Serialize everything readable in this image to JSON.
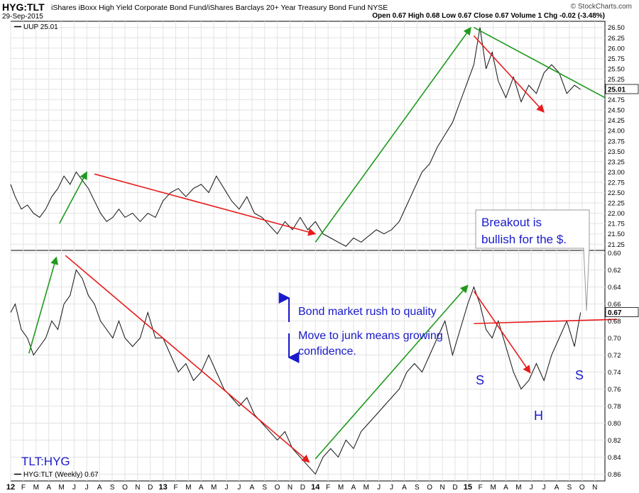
{
  "header": {
    "symbol": "HYG:TLT",
    "name": "iShares iBoxx High Yield Corporate Bond Fund/iShares Barclays 20+ Year Treasury Bond Fund",
    "exchange": "NYSE",
    "date": "29-Sep-2015",
    "credit": "© StockCharts.com",
    "ohlc": "Open 0.67  High 0.68  Low 0.67  Close 0.67  Volume 1  Chg -0.02 (-3.48%)"
  },
  "chart_data": [
    {
      "type": "line",
      "panel": "top",
      "legend": "UUP 25.01",
      "last_value_label": "25.01",
      "ylim": [
        21.1,
        26.65
      ],
      "yticks": [
        "21.25",
        "21.50",
        "21.75",
        "22.00",
        "22.25",
        "22.50",
        "22.75",
        "23.00",
        "23.25",
        "23.50",
        "23.75",
        "24.00",
        "24.25",
        "24.50",
        "24.75",
        "25.00",
        "25.25",
        "25.50",
        "25.75",
        "26.00",
        "26.25",
        "26.50"
      ],
      "series": [
        {
          "x": [
            2012.0,
            2012.03,
            2012.07,
            2012.11,
            2012.15,
            2012.19,
            2012.23,
            2012.27,
            2012.31,
            2012.35,
            2012.39,
            2012.43,
            2012.47,
            2012.51,
            2012.55,
            2012.59,
            2012.63,
            2012.67,
            2012.71,
            2012.75,
            2012.8,
            2012.85,
            2012.9,
            2012.95,
            2013.0,
            2013.05,
            2013.1,
            2013.15,
            2013.2,
            2013.25,
            2013.3,
            2013.35,
            2013.4,
            2013.45,
            2013.5,
            2013.55,
            2013.6,
            2013.65,
            2013.7,
            2013.75,
            2013.8,
            2013.85,
            2013.9,
            2013.95,
            2014.0,
            2014.05,
            2014.1,
            2014.15,
            2014.2,
            2014.25,
            2014.3,
            2014.35,
            2014.4,
            2014.45,
            2014.5,
            2014.55,
            2014.6,
            2014.65,
            2014.7,
            2014.75,
            2014.8,
            2014.85,
            2014.9,
            2014.95,
            2015.0,
            2015.04,
            2015.08,
            2015.12,
            2015.16,
            2015.2,
            2015.25,
            2015.3,
            2015.35,
            2015.4,
            2015.45,
            2015.5,
            2015.55,
            2015.6,
            2015.65,
            2015.7,
            2015.74
          ],
          "values": [
            22.7,
            22.4,
            22.1,
            22.2,
            22.0,
            21.9,
            22.1,
            22.4,
            22.6,
            22.9,
            22.7,
            23.0,
            22.8,
            22.6,
            22.3,
            22.0,
            21.8,
            21.9,
            22.1,
            21.9,
            22.0,
            21.8,
            22.0,
            21.9,
            22.3,
            22.5,
            22.6,
            22.4,
            22.6,
            22.7,
            22.5,
            22.9,
            22.6,
            22.3,
            22.1,
            22.4,
            22.0,
            21.9,
            21.7,
            21.5,
            21.8,
            21.6,
            21.9,
            21.6,
            21.8,
            21.5,
            21.4,
            21.3,
            21.2,
            21.4,
            21.3,
            21.45,
            21.6,
            21.5,
            21.6,
            21.8,
            22.2,
            22.6,
            23.0,
            23.2,
            23.6,
            23.9,
            24.2,
            24.7,
            25.2,
            25.6,
            26.5,
            25.5,
            25.9,
            25.2,
            24.8,
            25.3,
            24.7,
            25.1,
            24.9,
            25.4,
            25.6,
            25.4,
            24.9,
            25.1,
            25.0
          ]
        }
      ],
      "trendlines": [
        {
          "color": "#1f9a1f",
          "from": [
            2012.32,
            21.75
          ],
          "to": [
            2012.5,
            23.0
          ]
        },
        {
          "color": "#e81c1c",
          "from": [
            2012.55,
            22.95
          ],
          "to": [
            2014.0,
            21.5
          ]
        },
        {
          "color": "#1f9a1f",
          "from": [
            2014.0,
            21.3
          ],
          "to": [
            2015.02,
            26.5
          ]
        },
        {
          "color": "#e81c1c",
          "from": [
            2015.04,
            26.3
          ],
          "to": [
            2015.5,
            24.45
          ]
        },
        {
          "color": "#1f9a1f",
          "from": [
            2015.04,
            26.5
          ],
          "to": [
            2015.9,
            24.8
          ]
        }
      ]
    },
    {
      "type": "line",
      "panel": "bottom",
      "legend": "HYG:TLT (Weekly) 0.67",
      "last_value_label": "0.67",
      "y_inverted": true,
      "ylim": [
        0.597,
        0.868
      ],
      "yticks": [
        "0.60",
        "0.62",
        "0.64",
        "0.66",
        "0.68",
        "0.70",
        "0.72",
        "0.74",
        "0.76",
        "0.78",
        "0.80",
        "0.82",
        "0.84",
        "0.86"
      ],
      "series": [
        {
          "x": [
            2012.0,
            2012.03,
            2012.07,
            2012.11,
            2012.15,
            2012.19,
            2012.23,
            2012.27,
            2012.31,
            2012.35,
            2012.39,
            2012.43,
            2012.47,
            2012.51,
            2012.55,
            2012.59,
            2012.63,
            2012.67,
            2012.71,
            2012.75,
            2012.8,
            2012.85,
            2012.9,
            2012.95,
            2013.0,
            2013.05,
            2013.1,
            2013.15,
            2013.2,
            2013.25,
            2013.3,
            2013.35,
            2013.4,
            2013.45,
            2013.5,
            2013.55,
            2013.6,
            2013.65,
            2013.7,
            2013.75,
            2013.8,
            2013.85,
            2013.9,
            2013.95,
            2014.0,
            2014.05,
            2014.1,
            2014.15,
            2014.2,
            2014.25,
            2014.3,
            2014.35,
            2014.4,
            2014.45,
            2014.5,
            2014.55,
            2014.6,
            2014.65,
            2014.7,
            2014.75,
            2014.8,
            2014.85,
            2014.9,
            2014.95,
            2015.0,
            2015.04,
            2015.08,
            2015.12,
            2015.16,
            2015.2,
            2015.25,
            2015.3,
            2015.35,
            2015.4,
            2015.45,
            2015.5,
            2015.55,
            2015.6,
            2015.65,
            2015.7,
            2015.74
          ],
          "values": [
            0.67,
            0.66,
            0.69,
            0.7,
            0.72,
            0.71,
            0.7,
            0.68,
            0.69,
            0.66,
            0.65,
            0.62,
            0.63,
            0.65,
            0.66,
            0.68,
            0.69,
            0.7,
            0.68,
            0.7,
            0.71,
            0.7,
            0.67,
            0.7,
            0.7,
            0.72,
            0.74,
            0.73,
            0.75,
            0.74,
            0.72,
            0.74,
            0.76,
            0.77,
            0.78,
            0.77,
            0.79,
            0.8,
            0.81,
            0.82,
            0.81,
            0.83,
            0.84,
            0.85,
            0.86,
            0.84,
            0.83,
            0.84,
            0.82,
            0.83,
            0.81,
            0.8,
            0.79,
            0.78,
            0.77,
            0.76,
            0.74,
            0.73,
            0.74,
            0.72,
            0.7,
            0.68,
            0.72,
            0.69,
            0.66,
            0.64,
            0.66,
            0.69,
            0.7,
            0.68,
            0.71,
            0.74,
            0.76,
            0.75,
            0.73,
            0.75,
            0.72,
            0.7,
            0.68,
            0.71,
            0.67
          ]
        }
      ],
      "trendlines": [
        {
          "color": "#1f9a1f",
          "from": [
            2012.12,
            0.718
          ],
          "to": [
            2012.3,
            0.605
          ]
        },
        {
          "color": "#e81c1c",
          "from": [
            2012.36,
            0.603
          ],
          "to": [
            2013.96,
            0.846
          ]
        },
        {
          "color": "#1f9a1f",
          "from": [
            2014.0,
            0.842
          ],
          "to": [
            2015.0,
            0.638
          ]
        },
        {
          "color": "#e81c1c",
          "from": [
            2015.04,
            0.645
          ],
          "to": [
            2015.41,
            0.741
          ]
        },
        {
          "color": "#e81c1c",
          "from": [
            2015.04,
            0.683
          ],
          "to": [
            2015.98,
            0.678
          ]
        }
      ]
    }
  ],
  "x_axis": {
    "ticks": [
      "12",
      "F",
      "M",
      "A",
      "M",
      "J",
      "J",
      "A",
      "S",
      "O",
      "N",
      "D",
      "13",
      "F",
      "M",
      "A",
      "M",
      "J",
      "J",
      "A",
      "S",
      "O",
      "N",
      "D",
      "14",
      "F",
      "M",
      "A",
      "M",
      "J",
      "J",
      "A",
      "S",
      "O",
      "N",
      "D",
      "15",
      "F",
      "M",
      "A",
      "M",
      "J",
      "J",
      "A",
      "S",
      "O",
      "N"
    ],
    "range": [
      2012.0,
      2015.9
    ]
  },
  "annotations": {
    "breakout": [
      "Breakout is",
      "bullish for the $."
    ],
    "rush": "Bond market rush to quality",
    "junk": [
      "Move to junk means growing",
      "confidence."
    ],
    "s_left": "S",
    "h": "H",
    "s_right": "S",
    "panel_label": "TLT:HYG"
  },
  "colors": {
    "green": "#1f9a1f",
    "red": "#e81c1c",
    "blue": "#1a1acc",
    "line": "#111111"
  }
}
